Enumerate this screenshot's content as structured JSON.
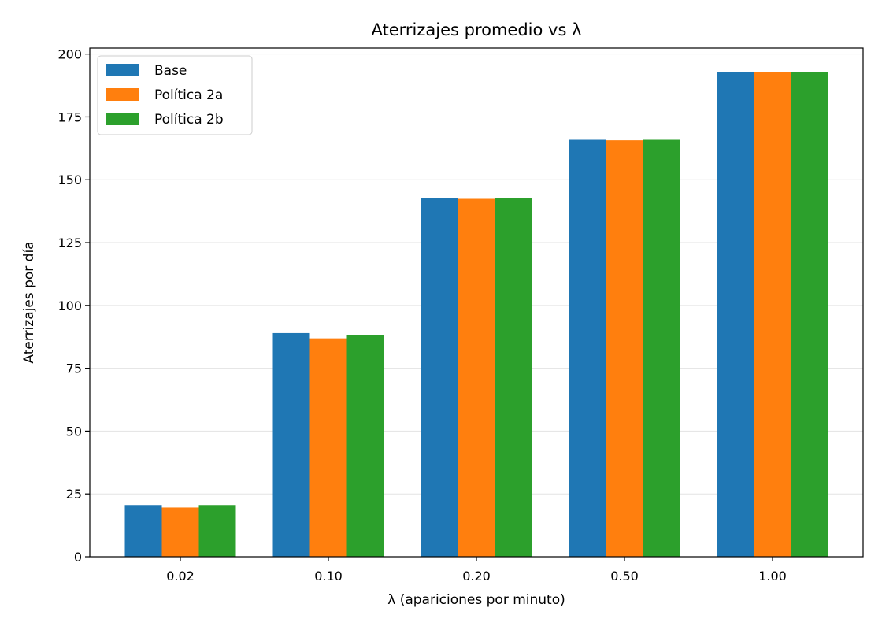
{
  "chart_data": {
    "type": "bar",
    "title": "Aterrizajes promedio vs λ",
    "xlabel": "λ (apariciones por minuto)",
    "ylabel": "Aterrizajes por día",
    "categories": [
      "0.02",
      "0.10",
      "0.20",
      "0.50",
      "1.00"
    ],
    "series": [
      {
        "name": "Base",
        "color": "#1f77b4",
        "values": [
          20.6,
          89.0,
          142.7,
          165.9,
          192.8
        ]
      },
      {
        "name": "Política 2a",
        "color": "#ff7f0e",
        "values": [
          19.6,
          86.9,
          142.4,
          165.7,
          192.8
        ]
      },
      {
        "name": "Política 2b",
        "color": "#2ca02c",
        "values": [
          20.6,
          88.3,
          142.7,
          165.9,
          192.8
        ]
      }
    ],
    "ylim": [
      0,
      202.4
    ],
    "yticks": [
      0,
      25,
      50,
      75,
      100,
      125,
      150,
      175,
      200
    ],
    "grid": "y",
    "legend_position": "top-left"
  }
}
